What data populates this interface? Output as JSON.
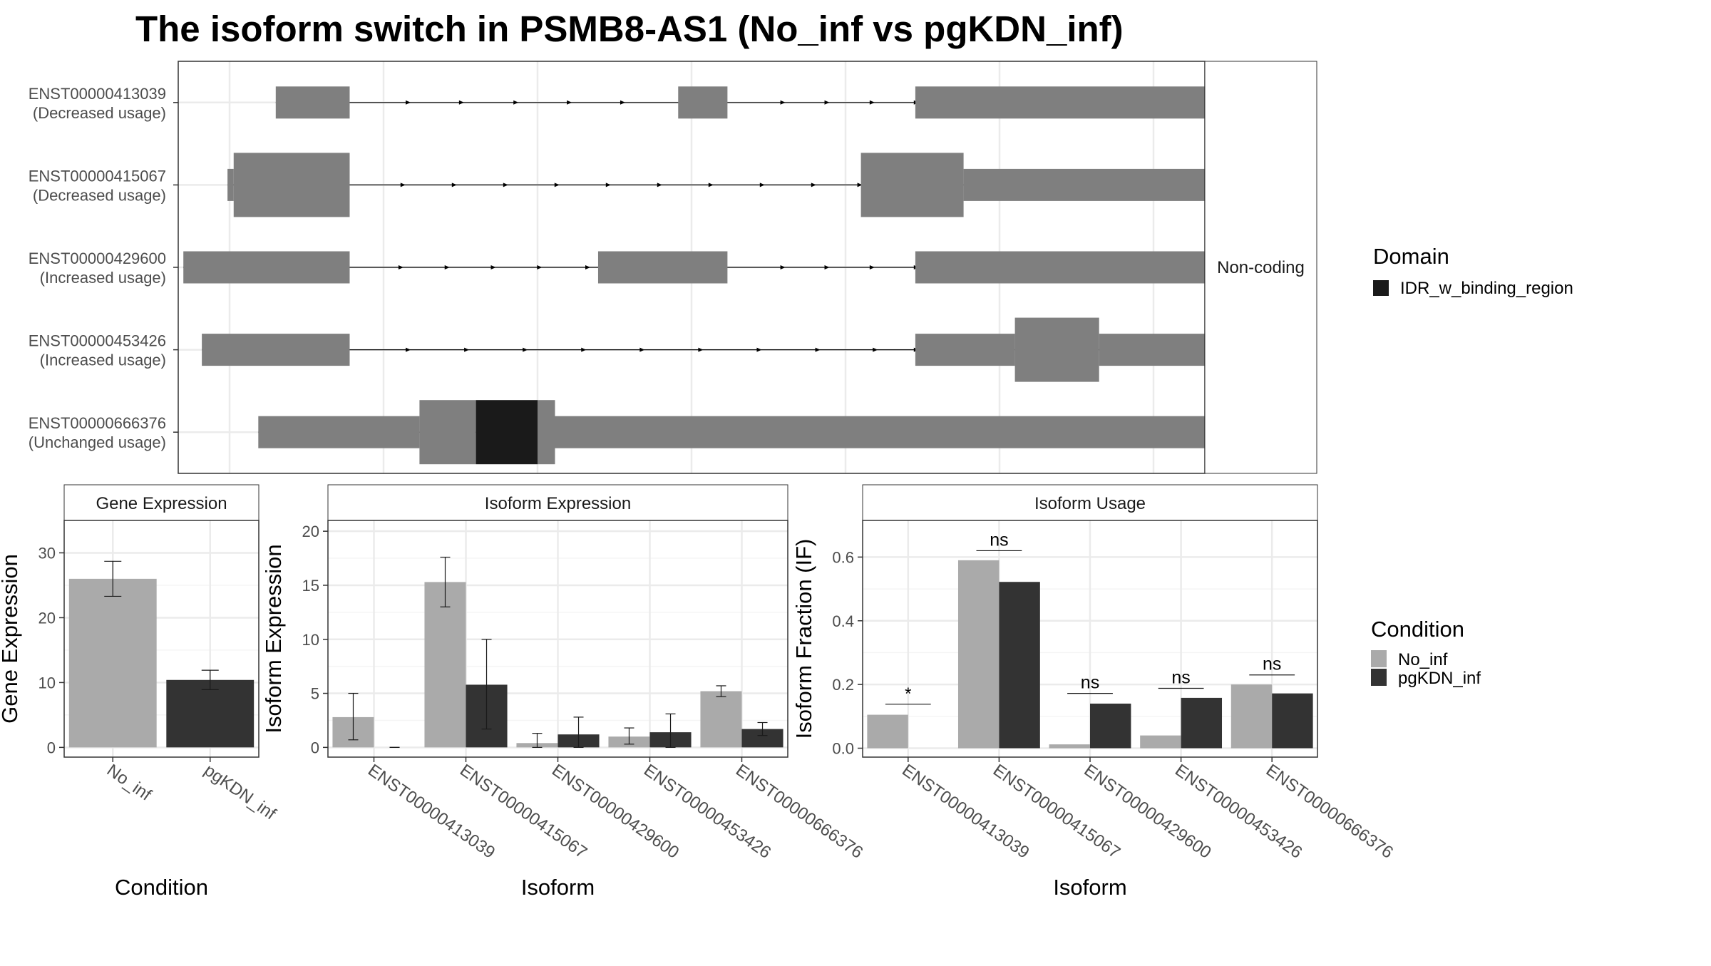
{
  "title": "The isoform switch in PSMB8-AS1 (No_inf vs pgKDN_inf)",
  "colors": {
    "exon": "#7f7f7f",
    "domain": "#1a1a1a",
    "no_inf": "#aaaaaa",
    "pgkdn_inf": "#333333",
    "grid": "#ebebeb",
    "strip": "#ffffff"
  },
  "structure": {
    "facet_label": "Non-coding",
    "xlim": [
      0,
      1000
    ],
    "grid_x": [
      50,
      200,
      350,
      500,
      650,
      800,
      950
    ],
    "transcripts": [
      {
        "id": "ENST00000413039",
        "usage": "(Decreased usage)",
        "exons": [
          [
            95,
            167,
            "n"
          ],
          [
            487,
            535,
            "n"
          ],
          [
            718,
            1065,
            "n"
          ]
        ],
        "arrows": [
          225,
          277,
          330,
          382,
          434,
          590,
          633,
          677,
          720
        ]
      },
      {
        "id": "ENST00000415067",
        "usage (orig)": "",
        "usage": "(Decreased usage)",
        "exons": [
          [
            48,
            54,
            "n"
          ],
          [
            54,
            167,
            "w"
          ],
          [
            665,
            765,
            "w"
          ],
          [
            765,
            1065,
            "n"
          ]
        ],
        "arrows": [
          220,
          270,
          320,
          370,
          420,
          470,
          520,
          570,
          620,
          665
        ]
      },
      {
        "id": "ENST00000429600",
        "usage": "(Increased usage)",
        "exons": [
          [
            5,
            167,
            "n"
          ],
          [
            409,
            535,
            "n"
          ],
          [
            718,
            1065,
            "n"
          ]
        ],
        "arrows": [
          218,
          263,
          308,
          353,
          400,
          590,
          633,
          677,
          720
        ]
      },
      {
        "id": "ENST00000453426",
        "usage": "(Increased usage)",
        "exons": [
          [
            23,
            167,
            "n"
          ],
          [
            718,
            815,
            "n"
          ],
          [
            815,
            897,
            "w"
          ],
          [
            897,
            1065,
            "n"
          ]
        ],
        "arrows": [
          225,
          282,
          339,
          396,
          453,
          510,
          567,
          624,
          680,
          720
        ]
      },
      {
        "id": "ENST00000666376",
        "usage": "(Unchanged usage)",
        "exons": [
          [
            78,
            235,
            "n"
          ],
          [
            235,
            290,
            "w"
          ],
          [
            290,
            350,
            "wd"
          ],
          [
            350,
            367,
            "w"
          ],
          [
            367,
            1065,
            "n"
          ]
        ],
        "arrows": []
      }
    ]
  },
  "domain_legend": {
    "title": "Domain",
    "label": "IDR_w_binding_region"
  },
  "condition_legend": {
    "title": "Condition",
    "labels": [
      "No_inf",
      "pgKDN_inf"
    ]
  },
  "chart_data": [
    {
      "type": "bar",
      "title": "Gene Expression",
      "categories": [
        "No_inf",
        "pgKDN_inf"
      ],
      "values": [
        26.0,
        10.4
      ],
      "errors": [
        [
          23.3,
          28.7
        ],
        [
          8.9,
          11.9
        ]
      ],
      "ylim": [
        -1.5,
        35
      ],
      "yticks": [
        "0",
        "10",
        "20",
        "30"
      ],
      "xlabel": "Condition",
      "ylabel": "Gene Expression"
    },
    {
      "type": "bar",
      "title": "Isoform Expression",
      "categories": [
        "ENST00000413039",
        "ENST00000415067",
        "ENST00000429600",
        "ENST00000453426",
        "ENST00000666376"
      ],
      "series": [
        {
          "name": "No_inf",
          "values": [
            2.8,
            15.3,
            0.4,
            1.0,
            5.2
          ],
          "errors": [
            [
              0.7,
              5.0
            ],
            [
              13.0,
              17.6
            ],
            [
              0.0,
              1.3
            ],
            [
              0.3,
              1.8
            ],
            [
              4.7,
              5.7
            ]
          ]
        },
        {
          "name": "pgKDN_inf",
          "values": [
            0.0,
            5.8,
            1.2,
            1.4,
            1.7
          ],
          "errors": [
            [
              0.0,
              0.0
            ],
            [
              1.7,
              10.0
            ],
            [
              0.0,
              2.8
            ],
            [
              0.0,
              3.1
            ],
            [
              1.1,
              2.3
            ]
          ]
        }
      ],
      "ylim": [
        -0.9,
        21
      ],
      "yticks": [
        "0",
        "5",
        "10",
        "15",
        "20"
      ],
      "xlabel": "Isoform",
      "ylabel": "Isoform Expression"
    },
    {
      "type": "bar",
      "title": "Isoform Usage",
      "categories": [
        "ENST00000413039",
        "ENST00000415067",
        "ENST00000429600",
        "ENST00000453426",
        "ENST00000666376"
      ],
      "series": [
        {
          "name": "No_inf",
          "values": [
            0.105,
            0.59,
            0.012,
            0.04,
            0.2
          ]
        },
        {
          "name": "pgKDN_inf",
          "values": [
            0.0,
            0.522,
            0.14,
            0.158,
            0.172
          ]
        }
      ],
      "significance": [
        "*",
        "ns",
        "ns",
        "ns",
        "ns"
      ],
      "sig_y": [
        0.138,
        0.62,
        0.172,
        0.188,
        0.23
      ],
      "ylim": [
        -0.028,
        0.715
      ],
      "yticks": [
        "0.0",
        "0.2",
        "0.4",
        "0.6"
      ],
      "xlabel": "Isoform",
      "ylabel": "Isoform Fraction (IF)"
    }
  ]
}
